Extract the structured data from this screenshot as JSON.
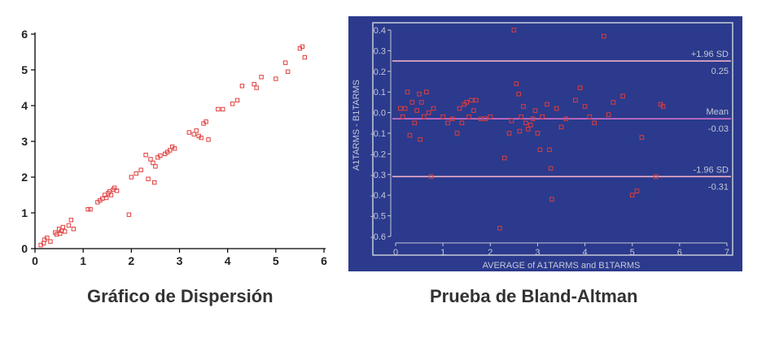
{
  "captions": {
    "left": "Gráfico de Dispersión",
    "right": "Prueba de Bland-Altman"
  },
  "colors": {
    "marker": "#e03c3c",
    "scatter_axis": "#000000",
    "ba_background": "#2b3a8c",
    "ba_border": "#c8ccd8",
    "ba_text": "#c4c8d8",
    "ba_lines": "#f0b0c8",
    "ba_mean_line": "#d070c8"
  },
  "chart_data": [
    {
      "type": "scatter",
      "title": "",
      "xlabel": "",
      "ylabel": "",
      "xlim": [
        0,
        6
      ],
      "ylim": [
        0,
        6
      ],
      "xticks": [
        "0",
        "1",
        "2",
        "3",
        "4",
        "5",
        "6"
      ],
      "yticks": [
        "0",
        "1",
        "2",
        "3",
        "4",
        "5",
        "6"
      ],
      "grid": false,
      "points": [
        [
          0.12,
          0.1
        ],
        [
          0.18,
          0.15
        ],
        [
          0.2,
          0.25
        ],
        [
          0.25,
          0.3
        ],
        [
          0.32,
          0.2
        ],
        [
          0.42,
          0.45
        ],
        [
          0.45,
          0.4
        ],
        [
          0.5,
          0.55
        ],
        [
          0.52,
          0.42
        ],
        [
          0.55,
          0.5
        ],
        [
          0.58,
          0.6
        ],
        [
          0.62,
          0.48
        ],
        [
          0.7,
          0.65
        ],
        [
          0.75,
          0.8
        ],
        [
          0.8,
          0.55
        ],
        [
          1.1,
          1.1
        ],
        [
          1.15,
          1.1
        ],
        [
          1.3,
          1.3
        ],
        [
          1.35,
          1.35
        ],
        [
          1.4,
          1.4
        ],
        [
          1.45,
          1.5
        ],
        [
          1.48,
          1.42
        ],
        [
          1.52,
          1.55
        ],
        [
          1.55,
          1.6
        ],
        [
          1.58,
          1.5
        ],
        [
          1.62,
          1.65
        ],
        [
          1.65,
          1.7
        ],
        [
          1.7,
          1.62
        ],
        [
          1.95,
          0.95
        ],
        [
          2.0,
          2.0
        ],
        [
          2.1,
          2.1
        ],
        [
          2.2,
          2.2
        ],
        [
          2.3,
          2.62
        ],
        [
          2.35,
          1.95
        ],
        [
          2.4,
          2.5
        ],
        [
          2.45,
          2.4
        ],
        [
          2.48,
          1.85
        ],
        [
          2.5,
          2.3
        ],
        [
          2.55,
          2.55
        ],
        [
          2.6,
          2.6
        ],
        [
          2.7,
          2.65
        ],
        [
          2.75,
          2.7
        ],
        [
          2.8,
          2.75
        ],
        [
          2.85,
          2.85
        ],
        [
          2.9,
          2.8
        ],
        [
          3.2,
          3.25
        ],
        [
          3.3,
          3.2
        ],
        [
          3.35,
          3.3
        ],
        [
          3.4,
          3.15
        ],
        [
          3.45,
          3.1
        ],
        [
          3.5,
          3.5
        ],
        [
          3.55,
          3.55
        ],
        [
          3.6,
          3.05
        ],
        [
          3.8,
          3.9
        ],
        [
          3.9,
          3.9
        ],
        [
          4.1,
          4.05
        ],
        [
          4.2,
          4.15
        ],
        [
          4.3,
          4.55
        ],
        [
          4.55,
          4.6
        ],
        [
          4.6,
          4.5
        ],
        [
          4.7,
          4.8
        ],
        [
          5.0,
          4.75
        ],
        [
          5.2,
          5.2
        ],
        [
          5.25,
          4.95
        ],
        [
          5.5,
          5.6
        ],
        [
          5.55,
          5.65
        ],
        [
          5.6,
          5.35
        ]
      ]
    },
    {
      "type": "scatter",
      "title": "",
      "xlabel": "AVERAGE of A1TARMS and B1TARMS",
      "ylabel": "A1TARMS - B1TARMS",
      "xlim": [
        0,
        7
      ],
      "ylim": [
        -0.6,
        0.4
      ],
      "xticks": [
        "0",
        "1",
        "2",
        "3",
        "4",
        "5",
        "6",
        "7"
      ],
      "yticks": [
        "0.4",
        "0.3",
        "0.2",
        "0.1",
        "0.0",
        "-0.1",
        "-0.2",
        "-0.3",
        "-0.4",
        "-0.5",
        "-0.6"
      ],
      "grid": false,
      "reference_lines": [
        {
          "label": "+1.96 SD",
          "value_text": "0.25",
          "y": 0.25
        },
        {
          "label": "Mean",
          "value_text": "-0.03",
          "y": -0.03
        },
        {
          "label": "-1.96 SD",
          "value_text": "-0.31",
          "y": -0.31
        }
      ],
      "points": [
        [
          0.1,
          0.02
        ],
        [
          0.15,
          -0.02
        ],
        [
          0.2,
          0.02
        ],
        [
          0.25,
          0.1
        ],
        [
          0.3,
          -0.11
        ],
        [
          0.35,
          0.05
        ],
        [
          0.4,
          -0.05
        ],
        [
          0.45,
          0.01
        ],
        [
          0.5,
          0.09
        ],
        [
          0.52,
          -0.13
        ],
        [
          0.55,
          0.05
        ],
        [
          0.6,
          -0.02
        ],
        [
          0.65,
          0.1
        ],
        [
          0.7,
          0.0
        ],
        [
          0.75,
          -0.31
        ],
        [
          0.8,
          0.02
        ],
        [
          1.0,
          -0.02
        ],
        [
          1.1,
          -0.05
        ],
        [
          1.2,
          -0.03
        ],
        [
          1.3,
          -0.1
        ],
        [
          1.35,
          0.02
        ],
        [
          1.4,
          -0.05
        ],
        [
          1.45,
          0.04
        ],
        [
          1.5,
          0.05
        ],
        [
          1.55,
          -0.02
        ],
        [
          1.6,
          0.06
        ],
        [
          1.65,
          0.01
        ],
        [
          1.7,
          0.06
        ],
        [
          1.8,
          -0.03
        ],
        [
          1.9,
          -0.03
        ],
        [
          2.0,
          -0.02
        ],
        [
          2.2,
          -0.56
        ],
        [
          2.3,
          -0.22
        ],
        [
          2.4,
          -0.1
        ],
        [
          2.45,
          -0.04
        ],
        [
          2.5,
          0.4
        ],
        [
          2.55,
          0.14
        ],
        [
          2.6,
          0.09
        ],
        [
          2.62,
          -0.09
        ],
        [
          2.65,
          -0.02
        ],
        [
          2.7,
          0.03
        ],
        [
          2.75,
          -0.05
        ],
        [
          2.8,
          -0.08
        ],
        [
          2.85,
          -0.06
        ],
        [
          2.9,
          -0.03
        ],
        [
          2.95,
          0.01
        ],
        [
          3.0,
          -0.1
        ],
        [
          3.05,
          -0.18
        ],
        [
          3.1,
          -0.02
        ],
        [
          3.2,
          0.04
        ],
        [
          3.25,
          -0.18
        ],
        [
          3.28,
          -0.27
        ],
        [
          3.3,
          -0.42
        ],
        [
          3.4,
          0.02
        ],
        [
          3.5,
          -0.07
        ],
        [
          3.6,
          -0.03
        ],
        [
          3.8,
          0.06
        ],
        [
          3.9,
          0.12
        ],
        [
          4.0,
          0.03
        ],
        [
          4.1,
          -0.02
        ],
        [
          4.2,
          -0.05
        ],
        [
          4.4,
          0.37
        ],
        [
          4.5,
          -0.01
        ],
        [
          4.6,
          0.05
        ],
        [
          4.8,
          0.08
        ],
        [
          5.0,
          -0.4
        ],
        [
          5.1,
          -0.38
        ],
        [
          5.2,
          -0.12
        ],
        [
          5.5,
          -0.31
        ],
        [
          5.6,
          0.04
        ],
        [
          5.65,
          0.03
        ]
      ]
    }
  ]
}
